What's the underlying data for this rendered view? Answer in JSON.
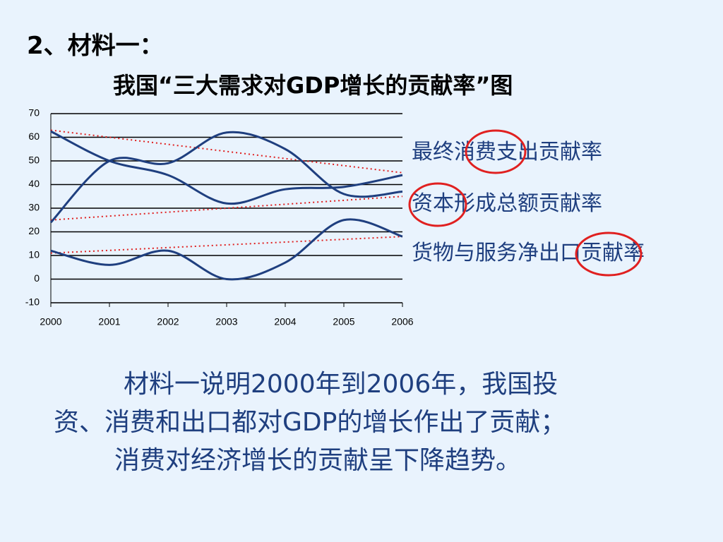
{
  "heading": "2、材料一：",
  "chart_data": {
    "type": "line",
    "title": "我国“三大需求对GDP增长的贡献率”图",
    "x": [
      2000,
      2001,
      2002,
      2003,
      2004,
      2005,
      2006
    ],
    "xlim": [
      2000,
      2006
    ],
    "xticks": [
      2000,
      2001,
      2002,
      2003,
      2004,
      2005,
      2006
    ],
    "ylim": [
      -10,
      70
    ],
    "yticks": [
      -10,
      0,
      10,
      20,
      30,
      40,
      50,
      60,
      70
    ],
    "grid": true,
    "series": [
      {
        "name": "最终消费支出贡献率",
        "color": "#1f3f7f",
        "values": [
          62.5,
          50,
          44,
          32,
          38,
          39,
          44
        ],
        "trend": [
          63,
          45
        ],
        "trend_color": "#e02020"
      },
      {
        "name": "资本形成总额贡献率",
        "color": "#1f3f7f",
        "values": [
          24,
          50,
          49,
          62,
          55,
          36,
          37
        ],
        "trend": [
          25,
          35
        ],
        "trend_color": "#e02020"
      },
      {
        "name": "货物与服务净出口贡献率",
        "color": "#1f3f7f",
        "values": [
          12,
          6,
          12,
          0,
          7,
          25,
          18
        ],
        "trend": [
          11,
          18
        ],
        "trend_color": "#e02020"
      }
    ]
  },
  "body": {
    "lines": [
      "材料一说明2000年到2006年，我国投",
      "资、消费和出口都对GDP的增长作出了贡献；",
      "消费对经济增长的贡献呈下降趋势。"
    ]
  }
}
